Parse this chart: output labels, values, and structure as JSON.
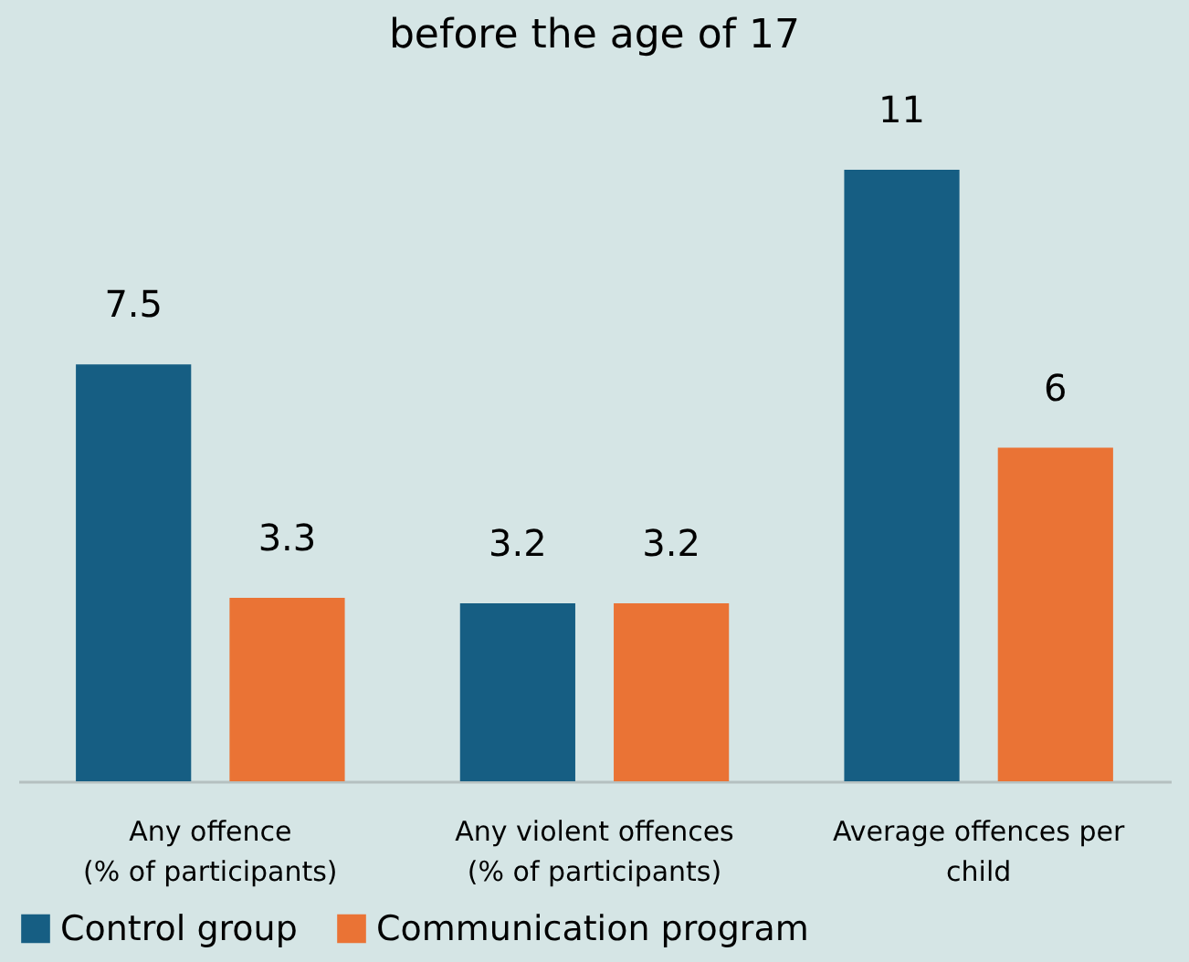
{
  "chart_data": {
    "type": "bar",
    "title": "before the age of 17",
    "categories": [
      "Any offence\n(% of participants)",
      "Any violent offences\n(% of participants)",
      "Average offences per\nchild"
    ],
    "series": [
      {
        "name": "Control group",
        "color": "#165e83",
        "values": [
          7.5,
          3.2,
          11
        ]
      },
      {
        "name": "Communication program",
        "color": "#ea7335",
        "values": [
          3.3,
          3.2,
          6
        ]
      }
    ],
    "data_labels": true,
    "legend": "bottom",
    "grid": false
  }
}
